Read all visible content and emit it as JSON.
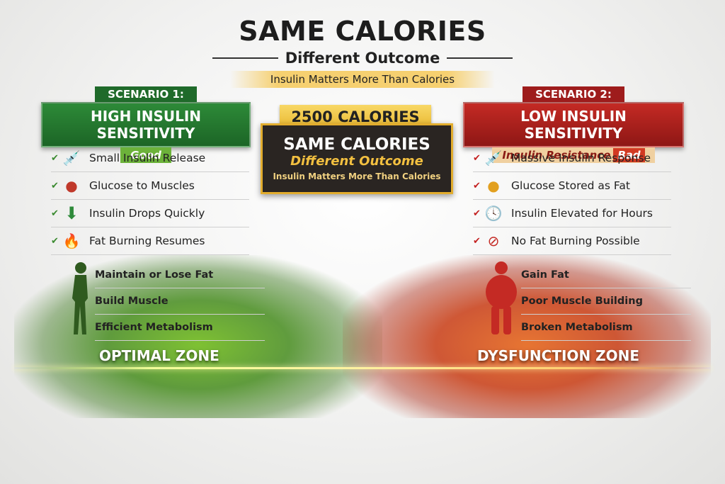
{
  "header": {
    "title": "SAME CALORIES",
    "subtitle": "Different Outcome",
    "tagline": "Insulin Matters More Than Calories"
  },
  "left": {
    "top_label": "SCENARIO 1:",
    "main_label": "HIGH INSULIN SENSITIVITY",
    "tag": "Good",
    "items": [
      {
        "icon": "syringe-icon",
        "label": "Small Insulin Release"
      },
      {
        "icon": "muscle-icon",
        "label": "Glucose to Muscles"
      },
      {
        "icon": "arrow-down-icon",
        "label": "Insulin Drops Quickly"
      },
      {
        "icon": "flame-icon",
        "label": "Fat Burning Resumes"
      }
    ],
    "outcomes": [
      "Maintain or Lose Fat",
      "Build Muscle",
      "Efficient Metabolism"
    ],
    "zone": "OPTIMAL ZONE"
  },
  "center": {
    "calories": "2500 CALORIES",
    "heading": "SAME CALORIES",
    "subheading": "Different Outcome",
    "tagline": "Insulin Matters More Than Calories"
  },
  "right": {
    "top_label": "SCENARIO 2:",
    "main_label": "LOW INSULIN SENSITIVITY",
    "tag": "Insulin Resistance",
    "tag_bad": "Bad",
    "items": [
      {
        "icon": "syringe-icon",
        "label": "Massive Insulin Response"
      },
      {
        "icon": "fat-cells-icon",
        "label": "Glucose Stored as Fat"
      },
      {
        "icon": "clock-icon",
        "label": "Insulin Elevated for Hours"
      },
      {
        "icon": "no-fat-burning-icon",
        "label": "No Fat Burning Possible"
      }
    ],
    "outcomes": [
      "Gain Fat",
      "Poor Muscle Building",
      "Broken Metabolism"
    ],
    "zone": "DYSFUNCTION ZONE"
  },
  "colors": {
    "good": "#2d8a38",
    "bad": "#c42a24",
    "accent": "#e9b730"
  }
}
